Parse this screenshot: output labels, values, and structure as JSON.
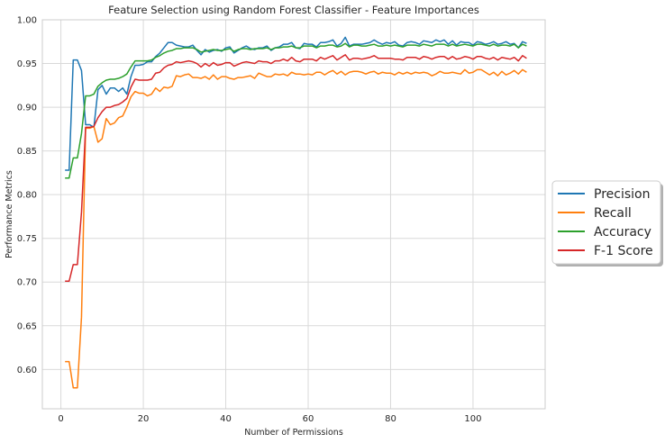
{
  "chart_data": {
    "type": "line",
    "title": "Feature Selection using Random Forest Classifier - Feature Importances",
    "xlabel": "Number of Permissions",
    "ylabel": "Performance Metrics",
    "xlim": [
      -4.5,
      117.5
    ],
    "ylim": [
      0.555,
      1.0
    ],
    "xticks": [
      0,
      20,
      40,
      60,
      80,
      100
    ],
    "yticks": [
      0.6,
      0.65,
      0.7,
      0.75,
      0.8,
      0.85,
      0.9,
      0.95,
      1.0
    ],
    "grid": true,
    "legend_position": "right",
    "x": [
      1,
      2,
      3,
      4,
      5,
      6,
      7,
      8,
      9,
      10,
      11,
      12,
      13,
      14,
      15,
      16,
      17,
      18,
      19,
      20,
      21,
      22,
      23,
      24,
      25,
      26,
      27,
      28,
      29,
      30,
      31,
      32,
      33,
      34,
      35,
      36,
      37,
      38,
      39,
      40,
      41,
      42,
      43,
      44,
      45,
      46,
      47,
      48,
      49,
      50,
      51,
      52,
      53,
      54,
      55,
      56,
      57,
      58,
      59,
      60,
      61,
      62,
      63,
      64,
      65,
      66,
      67,
      68,
      69,
      70,
      71,
      72,
      73,
      74,
      75,
      76,
      77,
      78,
      79,
      80,
      81,
      82,
      83,
      84,
      85,
      86,
      87,
      88,
      89,
      90,
      91,
      92,
      93,
      94,
      95,
      96,
      97,
      98,
      99,
      100,
      101,
      102,
      103,
      104,
      105,
      106,
      107,
      108,
      109,
      110,
      111,
      112,
      113
    ],
    "series": [
      {
        "name": "Precision",
        "color": "#1f77b4",
        "values": [
          0.828,
          0.828,
          0.954,
          0.954,
          0.942,
          0.88,
          0.88,
          0.877,
          0.92,
          0.925,
          0.915,
          0.922,
          0.922,
          0.918,
          0.922,
          0.915,
          0.935,
          0.948,
          0.948,
          0.949,
          0.952,
          0.952,
          0.958,
          0.962,
          0.968,
          0.974,
          0.974,
          0.971,
          0.97,
          0.969,
          0.969,
          0.971,
          0.965,
          0.96,
          0.966,
          0.963,
          0.965,
          0.966,
          0.964,
          0.968,
          0.969,
          0.962,
          0.965,
          0.968,
          0.97,
          0.967,
          0.966,
          0.968,
          0.968,
          0.97,
          0.965,
          0.968,
          0.969,
          0.972,
          0.972,
          0.974,
          0.968,
          0.967,
          0.973,
          0.972,
          0.972,
          0.969,
          0.974,
          0.974,
          0.975,
          0.977,
          0.97,
          0.973,
          0.98,
          0.97,
          0.972,
          0.972,
          0.972,
          0.973,
          0.974,
          0.977,
          0.974,
          0.972,
          0.974,
          0.973,
          0.975,
          0.971,
          0.97,
          0.974,
          0.975,
          0.974,
          0.972,
          0.976,
          0.975,
          0.974,
          0.977,
          0.975,
          0.977,
          0.972,
          0.976,
          0.971,
          0.975,
          0.974,
          0.974,
          0.971,
          0.975,
          0.974,
          0.972,
          0.973,
          0.975,
          0.972,
          0.973,
          0.975,
          0.972,
          0.973,
          0.968,
          0.975,
          0.973
        ]
      },
      {
        "name": "Recall",
        "color": "#ff7f0e",
        "values": [
          0.609,
          0.609,
          0.579,
          0.579,
          0.66,
          0.876,
          0.876,
          0.878,
          0.86,
          0.864,
          0.887,
          0.88,
          0.882,
          0.888,
          0.89,
          0.9,
          0.912,
          0.918,
          0.916,
          0.916,
          0.913,
          0.915,
          0.922,
          0.918,
          0.923,
          0.922,
          0.924,
          0.936,
          0.935,
          0.937,
          0.938,
          0.934,
          0.934,
          0.933,
          0.935,
          0.932,
          0.937,
          0.932,
          0.935,
          0.935,
          0.933,
          0.932,
          0.934,
          0.934,
          0.935,
          0.936,
          0.933,
          0.939,
          0.937,
          0.935,
          0.935,
          0.938,
          0.937,
          0.938,
          0.936,
          0.94,
          0.938,
          0.938,
          0.937,
          0.938,
          0.937,
          0.94,
          0.94,
          0.937,
          0.94,
          0.942,
          0.938,
          0.941,
          0.937,
          0.94,
          0.941,
          0.941,
          0.94,
          0.938,
          0.94,
          0.941,
          0.938,
          0.94,
          0.939,
          0.939,
          0.937,
          0.94,
          0.938,
          0.94,
          0.938,
          0.94,
          0.939,
          0.94,
          0.939,
          0.936,
          0.938,
          0.941,
          0.939,
          0.939,
          0.94,
          0.939,
          0.938,
          0.943,
          0.939,
          0.94,
          0.943,
          0.943,
          0.94,
          0.937,
          0.94,
          0.936,
          0.941,
          0.937,
          0.939,
          0.942,
          0.938,
          0.943,
          0.94
        ]
      },
      {
        "name": "Accuracy",
        "color": "#2ca02c",
        "values": [
          0.819,
          0.819,
          0.842,
          0.842,
          0.87,
          0.913,
          0.913,
          0.915,
          0.924,
          0.928,
          0.931,
          0.932,
          0.932,
          0.933,
          0.935,
          0.938,
          0.946,
          0.953,
          0.953,
          0.953,
          0.953,
          0.954,
          0.957,
          0.959,
          0.962,
          0.964,
          0.965,
          0.967,
          0.967,
          0.968,
          0.968,
          0.968,
          0.966,
          0.963,
          0.964,
          0.965,
          0.966,
          0.965,
          0.965,
          0.966,
          0.967,
          0.964,
          0.966,
          0.967,
          0.967,
          0.966,
          0.967,
          0.967,
          0.967,
          0.968,
          0.966,
          0.968,
          0.968,
          0.969,
          0.969,
          0.97,
          0.968,
          0.968,
          0.97,
          0.97,
          0.97,
          0.968,
          0.97,
          0.97,
          0.971,
          0.971,
          0.969,
          0.97,
          0.973,
          0.969,
          0.971,
          0.971,
          0.97,
          0.97,
          0.971,
          0.972,
          0.97,
          0.97,
          0.971,
          0.97,
          0.971,
          0.97,
          0.969,
          0.971,
          0.971,
          0.971,
          0.97,
          0.972,
          0.971,
          0.97,
          0.972,
          0.972,
          0.972,
          0.97,
          0.972,
          0.97,
          0.971,
          0.972,
          0.971,
          0.97,
          0.972,
          0.972,
          0.971,
          0.97,
          0.972,
          0.97,
          0.971,
          0.971,
          0.97,
          0.972,
          0.968,
          0.972,
          0.97
        ]
      },
      {
        "name": "F-1 Score",
        "color": "#d62728",
        "values": [
          0.701,
          0.701,
          0.72,
          0.72,
          0.78,
          0.877,
          0.877,
          0.878,
          0.888,
          0.895,
          0.9,
          0.9,
          0.902,
          0.903,
          0.906,
          0.91,
          0.923,
          0.932,
          0.931,
          0.931,
          0.931,
          0.932,
          0.939,
          0.94,
          0.945,
          0.948,
          0.949,
          0.952,
          0.951,
          0.952,
          0.953,
          0.952,
          0.95,
          0.946,
          0.95,
          0.947,
          0.951,
          0.948,
          0.949,
          0.951,
          0.951,
          0.947,
          0.949,
          0.951,
          0.952,
          0.951,
          0.95,
          0.953,
          0.952,
          0.952,
          0.95,
          0.953,
          0.953,
          0.955,
          0.953,
          0.957,
          0.953,
          0.952,
          0.955,
          0.955,
          0.955,
          0.953,
          0.957,
          0.955,
          0.957,
          0.959,
          0.954,
          0.957,
          0.96,
          0.954,
          0.956,
          0.956,
          0.955,
          0.956,
          0.957,
          0.959,
          0.956,
          0.956,
          0.956,
          0.956,
          0.955,
          0.955,
          0.954,
          0.957,
          0.957,
          0.957,
          0.955,
          0.958,
          0.957,
          0.955,
          0.957,
          0.958,
          0.958,
          0.955,
          0.958,
          0.955,
          0.956,
          0.958,
          0.957,
          0.955,
          0.958,
          0.958,
          0.956,
          0.955,
          0.957,
          0.954,
          0.957,
          0.956,
          0.955,
          0.957,
          0.953,
          0.959,
          0.956
        ]
      }
    ]
  }
}
